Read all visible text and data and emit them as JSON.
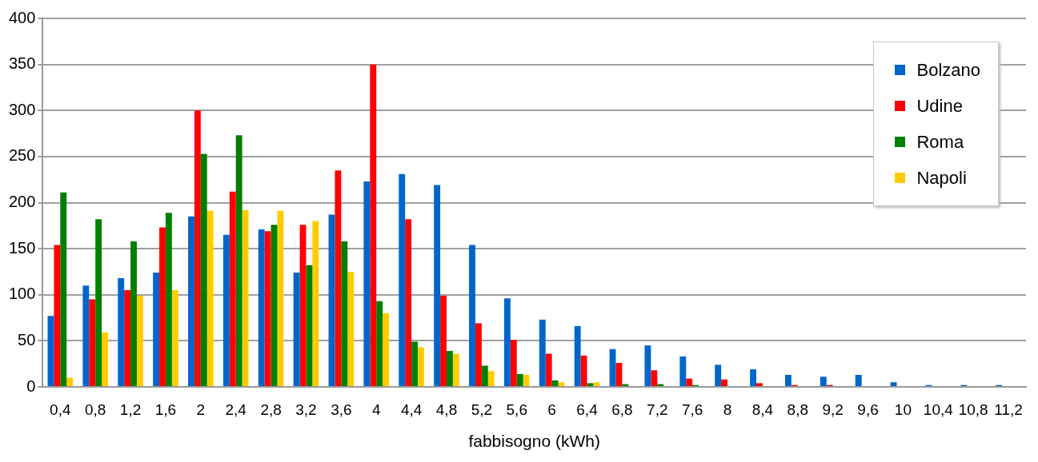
{
  "chart_data": {
    "type": "bar",
    "xlabel": "fabbisogno (kWh)",
    "categories": [
      "0,4",
      "0,8",
      "1,2",
      "1,6",
      "2",
      "2,4",
      "2,8",
      "3,2",
      "3,6",
      "4",
      "4,4",
      "4,8",
      "5,2",
      "5,6",
      "6",
      "6,4",
      "6,8",
      "7,2",
      "7,6",
      "8",
      "8,4",
      "8,8",
      "9,2",
      "9,6",
      "10",
      "10,4",
      "10,8",
      "11,2"
    ],
    "series": [
      {
        "name": "Bolzano",
        "color": "#0066cc",
        "values": [
          77,
          110,
          118,
          124,
          185,
          165,
          171,
          124,
          187,
          223,
          231,
          219,
          154,
          96,
          73,
          66,
          41,
          45,
          33,
          24,
          19,
          13,
          11,
          13,
          5,
          2,
          2,
          2
        ]
      },
      {
        "name": "Udine",
        "color": "#ff0000",
        "values": [
          154,
          95,
          105,
          173,
          300,
          212,
          169,
          176,
          235,
          350,
          182,
          99,
          69,
          51,
          36,
          34,
          26,
          18,
          9,
          8,
          4,
          2,
          2,
          0,
          0,
          0,
          0,
          0
        ]
      },
      {
        "name": "Roma",
        "color": "#008000",
        "values": [
          211,
          182,
          158,
          189,
          253,
          273,
          176,
          132,
          158,
          93,
          49,
          39,
          23,
          14,
          7,
          4,
          3,
          3,
          2,
          0,
          0,
          0,
          0,
          0,
          0,
          0,
          0,
          0
        ]
      },
      {
        "name": "Napoli",
        "color": "#ffcc00",
        "values": [
          10,
          59,
          99,
          105,
          191,
          192,
          191,
          180,
          125,
          80,
          43,
          36,
          17,
          13,
          5,
          5,
          0,
          0,
          0,
          0,
          0,
          0,
          0,
          0,
          0,
          0,
          0,
          0
        ]
      }
    ],
    "ylim": [
      0,
      400
    ],
    "yticks": [
      0,
      50,
      100,
      150,
      200,
      250,
      300,
      350,
      400
    ],
    "grid": "y",
    "legend": "top right"
  }
}
